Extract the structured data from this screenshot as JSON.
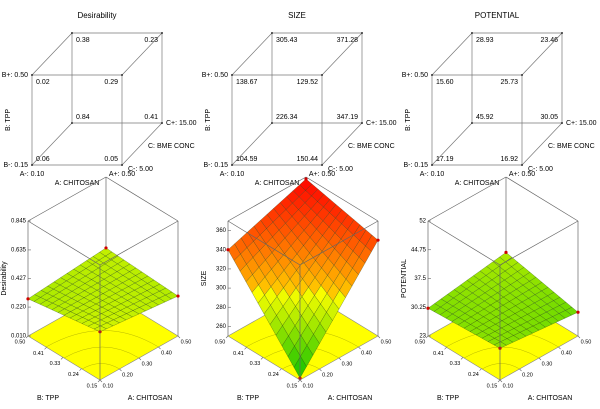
{
  "chart_data": [
    {
      "type": "cube",
      "title": "Desirability",
      "x_label": "A: CHITOSAN",
      "y_label": "B: TPP",
      "z_label": "C: BME CONC",
      "x_low": "A-: 0.10",
      "x_high": "A+: 0.50",
      "y_low": "B-: 0.15",
      "y_high": "B+: 0.50",
      "z_low": "C-: 5.00",
      "z_high": "C+: 15.00",
      "values": [
        0.06,
        0.05,
        0.02,
        0.29,
        0.84,
        0.41,
        0.38,
        0.23
      ],
      "value_labels": [
        "0.06",
        "0.05",
        "0.02",
        "0.29",
        "0.84",
        "0.41",
        "0.38",
        "0.23"
      ]
    },
    {
      "type": "cube",
      "title": "SIZE",
      "x_label": "A: CHITOSAN",
      "y_label": "B: TPP",
      "z_label": "C: BME CONC",
      "x_low": "A-: 0.10",
      "x_high": "A+: 0.50",
      "y_low": "B-: 0.15",
      "y_high": "B+: 0.50",
      "z_low": "C-: 5.00",
      "z_high": "C+: 15.00",
      "values": [
        104.59,
        150.44,
        138.67,
        129.52,
        226.34,
        347.19,
        305.43,
        371.28
      ],
      "value_labels": [
        "104.59",
        "150.44",
        "138.67",
        "129.52",
        "226.34",
        "347.19",
        "305.43",
        "371.28"
      ]
    },
    {
      "type": "cube",
      "title": "POTENTIAL",
      "x_label": "A: CHITOSAN",
      "y_label": "B: TPP",
      "z_label": "C: BME CONC",
      "x_low": "A-: 0.10",
      "x_high": "A+: 0.50",
      "y_low": "B-: 0.15",
      "y_high": "B+: 0.50",
      "z_low": "C-: 5.00",
      "z_high": "C+: 15.00",
      "values": [
        17.19,
        16.92,
        15.6,
        25.73,
        45.92,
        30.05,
        28.93,
        23.46
      ],
      "value_labels": [
        "17.19",
        "16.92",
        "15.60",
        "25.73",
        "45.92",
        "30.05",
        "28.93",
        "23.46"
      ]
    },
    {
      "type": "surface",
      "z_label": "Desirability",
      "x_label": "A: CHITOSAN",
      "y_label": "B: TPP",
      "xlim": [
        0.1,
        0.5
      ],
      "xticks": [
        {
          "value": 0.1,
          "label": "0.10"
        },
        {
          "value": 0.2,
          "label": "0.20"
        },
        {
          "value": 0.3,
          "label": "0.30"
        },
        {
          "value": 0.4,
          "label": "0.40"
        },
        {
          "value": 0.5,
          "label": "0.50"
        }
      ],
      "ylim": [
        0.15,
        0.5
      ],
      "yticks": [
        0.15,
        0.24,
        0.33,
        0.41,
        {
          "value": 0.5,
          "label": "0.50"
        }
      ],
      "zlim": [
        0.01,
        0.845
      ],
      "zticks": [
        {
          "value": 0.01,
          "label": "0.010"
        },
        {
          "value": 0.22,
          "label": "0.220"
        },
        0.427,
        0.635,
        0.845
      ],
      "values": [
        0.36,
        0.3,
        0.28,
        0.33
      ]
    },
    {
      "type": "surface",
      "z_label": "SIZE",
      "x_label": "A: CHITOSAN",
      "y_label": "B: TPP",
      "xlim": [
        0.1,
        0.5
      ],
      "xticks": [
        {
          "value": 0.1,
          "label": "0.10"
        },
        {
          "value": 0.2,
          "label": "0.20"
        },
        {
          "value": 0.3,
          "label": "0.30"
        },
        {
          "value": 0.4,
          "label": "0.40"
        },
        {
          "value": 0.5,
          "label": "0.50"
        }
      ],
      "ylim": [
        0.15,
        0.5
      ],
      "yticks": [
        0.15,
        0.24,
        0.33,
        0.41,
        {
          "value": 0.5,
          "label": "0.50"
        }
      ],
      "zlim": [
        250,
        370
      ],
      "zticks": [
        260,
        280,
        300,
        320,
        340,
        360
      ],
      "values": [
        252,
        350,
        340,
        368
      ]
    },
    {
      "type": "surface",
      "z_label": "POTENTIAL",
      "x_label": "A: CHITOSAN",
      "y_label": "B: TPP",
      "xlim": [
        0.1,
        0.5
      ],
      "xticks": [
        {
          "value": 0.1,
          "label": "0.10"
        },
        {
          "value": 0.2,
          "label": "0.20"
        },
        {
          "value": 0.3,
          "label": "0.30"
        },
        {
          "value": 0.4,
          "label": "0.40"
        },
        {
          "value": 0.5,
          "label": "0.50"
        }
      ],
      "ylim": [
        0.15,
        0.5
      ],
      "yticks": [
        0.15,
        0.24,
        0.33,
        0.41,
        {
          "value": 0.5,
          "label": "0.50"
        }
      ],
      "zlim": [
        23,
        52
      ],
      "zticks": [
        23,
        30.25,
        37.5,
        44.75,
        52
      ],
      "values": [
        31,
        29,
        30,
        33
      ]
    }
  ]
}
